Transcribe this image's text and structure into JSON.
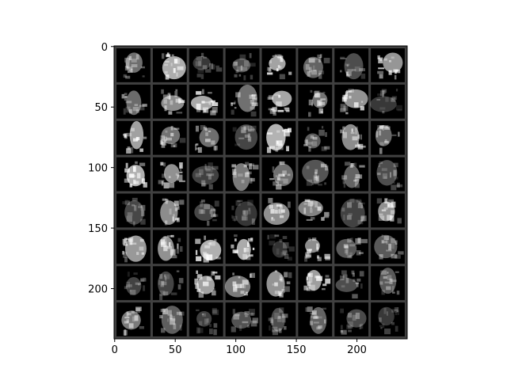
{
  "figure": {
    "x_ticks": [
      {
        "value": 0,
        "label": "0"
      },
      {
        "value": 50,
        "label": "50"
      },
      {
        "value": 100,
        "label": "100"
      },
      {
        "value": 150,
        "label": "150"
      },
      {
        "value": 200,
        "label": "200"
      }
    ],
    "y_ticks": [
      {
        "value": 0,
        "label": "0"
      },
      {
        "value": 50,
        "label": "50"
      },
      {
        "value": 100,
        "label": "100"
      },
      {
        "value": 150,
        "label": "150"
      },
      {
        "value": 200,
        "label": "200"
      }
    ],
    "x_range": [
      -0.5,
      241.5
    ],
    "y_range": [
      241.5,
      -0.5
    ],
    "grid": {
      "rows": 8,
      "cols": 8,
      "tile_size_data": 28,
      "padding_data": 2
    },
    "colors": {
      "background": "#ffffff",
      "tile_gap": "#404040",
      "tile_bg": "#000000",
      "ink": "#ffffff"
    }
  }
}
